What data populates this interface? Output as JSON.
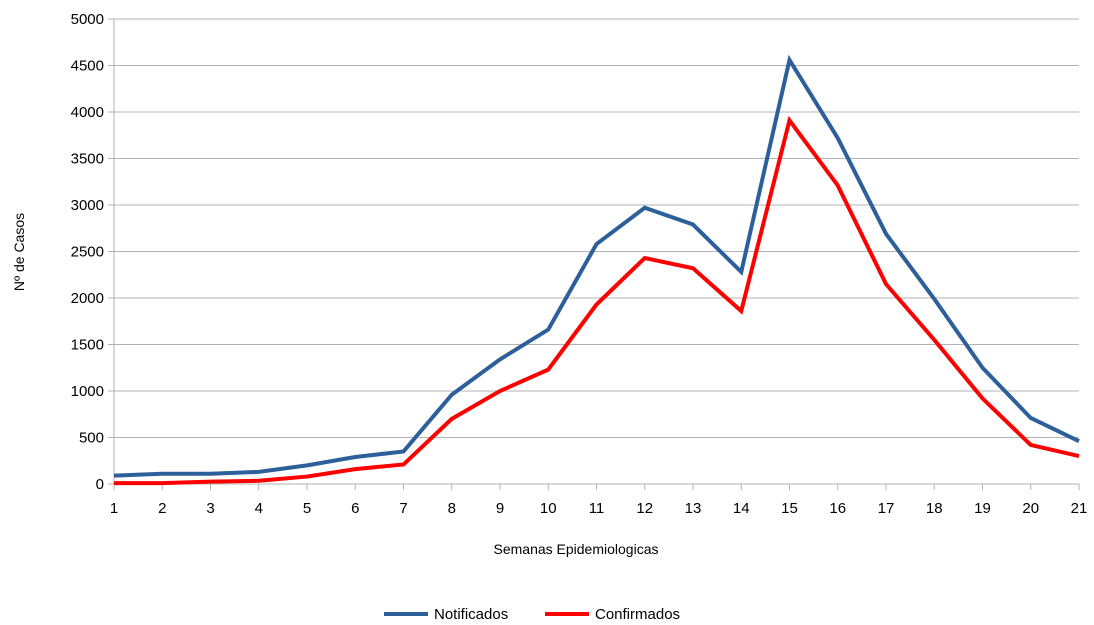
{
  "chart_data": {
    "type": "line",
    "title": "",
    "xlabel": "Semanas Epidemiologicas",
    "ylabel": "Nº de Casos",
    "x": [
      1,
      2,
      3,
      4,
      5,
      6,
      7,
      8,
      9,
      10,
      11,
      12,
      13,
      14,
      15,
      16,
      17,
      18,
      19,
      20,
      21
    ],
    "ylim": [
      0,
      5000
    ],
    "yticks": [
      0,
      500,
      1000,
      1500,
      2000,
      2500,
      3000,
      3500,
      4000,
      4500,
      5000
    ],
    "grid": true,
    "legend_position": "bottom",
    "series": [
      {
        "name": "Notificados",
        "color": "#2d5f9a",
        "values": [
          90,
          110,
          110,
          130,
          200,
          290,
          350,
          960,
          1340,
          1660,
          2580,
          2970,
          2790,
          2280,
          4560,
          3720,
          2690,
          1990,
          1250,
          710,
          460
        ]
      },
      {
        "name": "Confirmados",
        "color": "#ff0000",
        "values": [
          10,
          10,
          25,
          35,
          80,
          160,
          210,
          700,
          1000,
          1230,
          1930,
          2430,
          2320,
          1860,
          3910,
          3210,
          2150,
          1550,
          920,
          420,
          300
        ]
      }
    ]
  }
}
